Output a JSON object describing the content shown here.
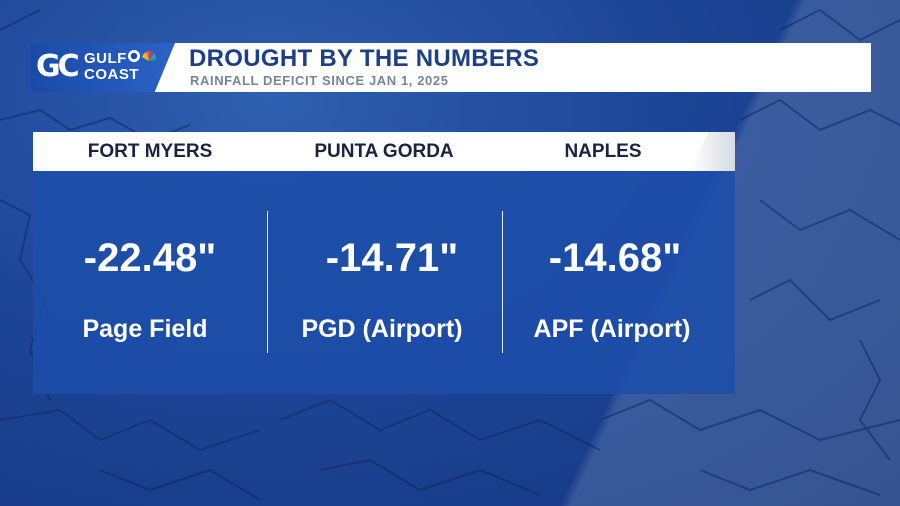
{
  "brand": {
    "logo_mark": "GC",
    "name_line1": "GULF",
    "name_line2": "COAST",
    "network_icons": [
      "abc-icon",
      "nbc-peacock-icon"
    ]
  },
  "graphic": {
    "title": "DROUGHT BY THE NUMBERS",
    "subtitle": "RAINFALL DEFICIT SINCE JAN 1, 2025"
  },
  "locations": [
    {
      "city": "FORT MYERS",
      "deficit": "-22.48\"",
      "station": "Page Field"
    },
    {
      "city": "PUNTA GORDA",
      "deficit": "-14.71\"",
      "station": "PGD (Airport)"
    },
    {
      "city": "NAPLES",
      "deficit": "-14.68\"",
      "station": "APF (Airport)"
    }
  ],
  "colors": {
    "title": "#1c3f8a",
    "panel": "#1c4eaa",
    "header_bg": "#ffffff",
    "subtitle": "#7a8594"
  }
}
